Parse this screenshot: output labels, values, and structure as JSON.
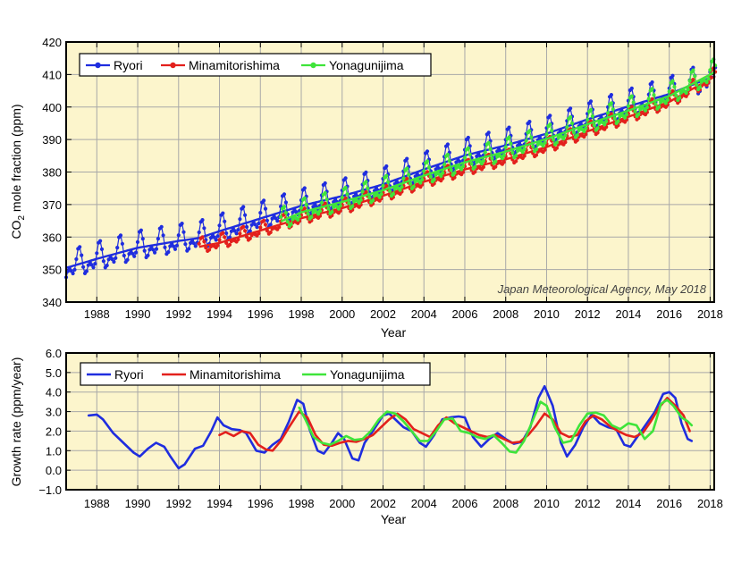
{
  "colors": {
    "panel_background": "#fcf5cc",
    "grid": "#a8a8a8",
    "Ryori": "#1f2ddf",
    "Minamitorishima": "#e3201c",
    "Yonagunijima": "#3fe43a"
  },
  "chart_data": [
    {
      "id": "co2",
      "type": "line",
      "title": "",
      "xlabel": "Year",
      "ylabel_main": "CO",
      "ylabel_sub": "2",
      "ylabel_rest": " mole fraction (ppm)",
      "xlim": [
        1986.5,
        2018.2
      ],
      "ylim": [
        340,
        420
      ],
      "xticks": [
        1988,
        1990,
        1992,
        1994,
        1996,
        1998,
        2000,
        2002,
        2004,
        2006,
        2008,
        2010,
        2012,
        2014,
        2016,
        2018
      ],
      "xtick_labels": [
        "1988",
        "1990",
        "1992",
        "1994",
        "1996",
        "1998",
        "2000",
        "2002",
        "2004",
        "2006",
        "2008",
        "2010",
        "2012",
        "2014",
        "2016",
        "2018"
      ],
      "yticks": [
        340,
        350,
        360,
        370,
        380,
        390,
        400,
        410,
        420
      ],
      "ytick_labels": [
        "340",
        "350",
        "360",
        "370",
        "380",
        "390",
        "400",
        "410",
        "420"
      ],
      "grid": true,
      "legend_position": "top-left",
      "annotation": "Japan Meteorological Agency, May 2018",
      "series": [
        {
          "name": "Ryori",
          "color_key": "Ryori",
          "start": 1986.5,
          "end": 2018.3,
          "amplitude": 5.5,
          "trend": [
            [
              1986.5,
              350.5
            ],
            [
              1988.0,
              353.3
            ],
            [
              1990.0,
              356.7
            ],
            [
              1992.0,
              358.8
            ],
            [
              1993.0,
              359.7
            ],
            [
              1994.0,
              361.8
            ],
            [
              1996.0,
              365.7
            ],
            [
              1998.0,
              369.6
            ],
            [
              2000.0,
              372.6
            ],
            [
              2002.0,
              376.2
            ],
            [
              2004.0,
              380.8
            ],
            [
              2006.0,
              385.1
            ],
            [
              2008.0,
              388.2
            ],
            [
              2010.0,
              391.8
            ],
            [
              2012.0,
              396.2
            ],
            [
              2014.0,
              400.2
            ],
            [
              2016.0,
              404.0
            ],
            [
              2018.0,
              409.0
            ]
          ]
        },
        {
          "name": "Minamitorishima",
          "color_key": "Minamitorishima",
          "start": 1993.0,
          "end": 2018.3,
          "amplitude": 2.9,
          "trend": [
            [
              1993.0,
              357.0
            ],
            [
              1994.0,
              358.2
            ],
            [
              1996.0,
              362.0
            ],
            [
              1998.0,
              365.8
            ],
            [
              2000.0,
              368.9
            ],
            [
              2002.0,
              372.7
            ],
            [
              2004.0,
              377.0
            ],
            [
              2006.0,
              380.8
            ],
            [
              2008.0,
              383.9
            ],
            [
              2010.0,
              387.7
            ],
            [
              2012.0,
              392.5
            ],
            [
              2014.0,
              397.0
            ],
            [
              2016.0,
              401.6
            ],
            [
              2018.0,
              408.6
            ]
          ]
        },
        {
          "name": "Yonagunijima",
          "color_key": "Yonagunijima",
          "start": 1997.0,
          "end": 2018.3,
          "amplitude": 4.3,
          "trend": [
            [
              1997.0,
              364.8
            ],
            [
              1998.0,
              367.6
            ],
            [
              2000.0,
              370.8
            ],
            [
              2002.0,
              374.4
            ],
            [
              2004.0,
              378.9
            ],
            [
              2006.0,
              383.0
            ],
            [
              2008.0,
              386.3
            ],
            [
              2010.0,
              390.2
            ],
            [
              2012.0,
              394.7
            ],
            [
              2014.0,
              398.9
            ],
            [
              2016.0,
              403.4
            ],
            [
              2018.0,
              410.0
            ]
          ]
        }
      ]
    },
    {
      "id": "growth",
      "type": "line",
      "title": "",
      "xlabel": "Year",
      "ylabel": "Growth rate (ppm/year)",
      "xlim": [
        1986.5,
        2018.2
      ],
      "ylim": [
        -1.0,
        6.0
      ],
      "xticks": [
        1988,
        1990,
        1992,
        1994,
        1996,
        1998,
        2000,
        2002,
        2004,
        2006,
        2008,
        2010,
        2012,
        2014,
        2016,
        2018
      ],
      "xtick_labels": [
        "1988",
        "1990",
        "1992",
        "1994",
        "1996",
        "1998",
        "2000",
        "2002",
        "2004",
        "2006",
        "2008",
        "2010",
        "2012",
        "2014",
        "2016",
        "2018"
      ],
      "yticks": [
        -1,
        0,
        1,
        2,
        3,
        4,
        5,
        6
      ],
      "ytick_labels": [
        "−1.0",
        "0.0",
        "1.0",
        "2.0",
        "3.0",
        "4.0",
        "5.0",
        "6.0"
      ],
      "grid": true,
      "legend_position": "top",
      "series": [
        {
          "name": "Ryori",
          "color_key": "Ryori",
          "points": [
            [
              1987.6,
              2.8
            ],
            [
              1988.0,
              2.85
            ],
            [
              1988.3,
              2.6
            ],
            [
              1988.8,
              1.9
            ],
            [
              1989.3,
              1.4
            ],
            [
              1989.8,
              0.9
            ],
            [
              1990.1,
              0.7
            ],
            [
              1990.5,
              1.1
            ],
            [
              1990.9,
              1.4
            ],
            [
              1991.3,
              1.2
            ],
            [
              1991.6,
              0.7
            ],
            [
              1992.0,
              0.1
            ],
            [
              1992.3,
              0.3
            ],
            [
              1992.8,
              1.1
            ],
            [
              1993.2,
              1.25
            ],
            [
              1993.6,
              2.0
            ],
            [
              1993.9,
              2.7
            ],
            [
              1994.2,
              2.3
            ],
            [
              1994.6,
              2.1
            ],
            [
              1995.0,
              2.05
            ],
            [
              1995.3,
              1.9
            ],
            [
              1995.8,
              1.0
            ],
            [
              1996.2,
              0.9
            ],
            [
              1996.6,
              1.3
            ],
            [
              1997.0,
              1.6
            ],
            [
              1997.4,
              2.5
            ],
            [
              1997.8,
              3.6
            ],
            [
              1998.1,
              3.4
            ],
            [
              1998.4,
              2.1
            ],
            [
              1998.8,
              1.0
            ],
            [
              1999.1,
              0.85
            ],
            [
              1999.5,
              1.4
            ],
            [
              1999.8,
              1.9
            ],
            [
              2000.1,
              1.6
            ],
            [
              2000.5,
              0.6
            ],
            [
              2000.8,
              0.5
            ],
            [
              2001.1,
              1.4
            ],
            [
              2001.5,
              2.0
            ],
            [
              2002.0,
              2.8
            ],
            [
              2002.3,
              2.9
            ],
            [
              2002.7,
              2.5
            ],
            [
              2003.0,
              2.2
            ],
            [
              2003.4,
              2.0
            ],
            [
              2003.8,
              1.4
            ],
            [
              2004.1,
              1.2
            ],
            [
              2004.5,
              1.8
            ],
            [
              2004.9,
              2.6
            ],
            [
              2005.3,
              2.7
            ],
            [
              2005.7,
              2.75
            ],
            [
              2006.0,
              2.7
            ],
            [
              2006.4,
              1.7
            ],
            [
              2006.8,
              1.2
            ],
            [
              2007.2,
              1.6
            ],
            [
              2007.6,
              1.9
            ],
            [
              2008.0,
              1.6
            ],
            [
              2008.4,
              1.35
            ],
            [
              2008.8,
              1.45
            ],
            [
              2009.2,
              2.2
            ],
            [
              2009.6,
              3.7
            ],
            [
              2009.9,
              4.3
            ],
            [
              2010.3,
              3.3
            ],
            [
              2010.7,
              1.4
            ],
            [
              2011.0,
              0.7
            ],
            [
              2011.4,
              1.3
            ],
            [
              2011.8,
              2.2
            ],
            [
              2012.2,
              2.85
            ],
            [
              2012.6,
              2.4
            ],
            [
              2013.0,
              2.2
            ],
            [
              2013.4,
              2.1
            ],
            [
              2013.8,
              1.3
            ],
            [
              2014.1,
              1.2
            ],
            [
              2014.5,
              1.8
            ],
            [
              2014.9,
              2.4
            ],
            [
              2015.3,
              3.0
            ],
            [
              2015.7,
              3.9
            ],
            [
              2016.0,
              4.0
            ],
            [
              2016.3,
              3.7
            ],
            [
              2016.6,
              2.4
            ],
            [
              2016.9,
              1.6
            ],
            [
              2017.1,
              1.5
            ]
          ]
        },
        {
          "name": "Minamitorishima",
          "color_key": "Minamitorishima",
          "points": [
            [
              1994.0,
              1.8
            ],
            [
              1994.3,
              1.95
            ],
            [
              1994.7,
              1.75
            ],
            [
              1995.1,
              2.0
            ],
            [
              1995.5,
              1.9
            ],
            [
              1995.9,
              1.3
            ],
            [
              1996.3,
              1.05
            ],
            [
              1996.6,
              1.0
            ],
            [
              1997.0,
              1.5
            ],
            [
              1997.4,
              2.2
            ],
            [
              1997.9,
              3.0
            ],
            [
              1998.3,
              2.7
            ],
            [
              1998.7,
              1.8
            ],
            [
              1999.1,
              1.3
            ],
            [
              1999.5,
              1.25
            ],
            [
              1999.9,
              1.4
            ],
            [
              2000.3,
              1.5
            ],
            [
              2000.7,
              1.45
            ],
            [
              2001.1,
              1.6
            ],
            [
              2001.5,
              1.8
            ],
            [
              2001.9,
              2.2
            ],
            [
              2002.3,
              2.6
            ],
            [
              2002.7,
              2.9
            ],
            [
              2003.1,
              2.6
            ],
            [
              2003.5,
              2.1
            ],
            [
              2003.9,
              1.9
            ],
            [
              2004.3,
              1.7
            ],
            [
              2004.7,
              2.3
            ],
            [
              2005.1,
              2.7
            ],
            [
              2005.5,
              2.4
            ],
            [
              2005.9,
              2.2
            ],
            [
              2006.3,
              2.0
            ],
            [
              2006.7,
              1.8
            ],
            [
              2007.1,
              1.7
            ],
            [
              2007.5,
              1.8
            ],
            [
              2007.9,
              1.6
            ],
            [
              2008.3,
              1.4
            ],
            [
              2008.7,
              1.45
            ],
            [
              2009.1,
              1.8
            ],
            [
              2009.5,
              2.3
            ],
            [
              2009.9,
              2.9
            ],
            [
              2010.3,
              2.6
            ],
            [
              2010.7,
              1.9
            ],
            [
              2011.1,
              1.7
            ],
            [
              2011.5,
              1.8
            ],
            [
              2011.9,
              2.5
            ],
            [
              2012.3,
              2.8
            ],
            [
              2012.7,
              2.6
            ],
            [
              2013.1,
              2.25
            ],
            [
              2013.5,
              2.0
            ],
            [
              2013.9,
              1.8
            ],
            [
              2014.3,
              1.7
            ],
            [
              2014.7,
              1.9
            ],
            [
              2015.1,
              2.5
            ],
            [
              2015.5,
              3.2
            ],
            [
              2015.9,
              3.7
            ],
            [
              2016.3,
              3.3
            ],
            [
              2016.7,
              2.8
            ],
            [
              2017.0,
              2.0
            ]
          ]
        },
        {
          "name": "Yonagunijima",
          "color_key": "Yonagunijima",
          "points": [
            [
              1997.9,
              3.2
            ],
            [
              1998.2,
              2.6
            ],
            [
              1998.6,
              1.7
            ],
            [
              1999.0,
              1.4
            ],
            [
              1999.4,
              1.3
            ],
            [
              1999.8,
              1.5
            ],
            [
              2000.2,
              1.75
            ],
            [
              2000.6,
              1.55
            ],
            [
              2001.0,
              1.6
            ],
            [
              2001.4,
              2.0
            ],
            [
              2001.8,
              2.6
            ],
            [
              2002.2,
              3.0
            ],
            [
              2002.6,
              2.9
            ],
            [
              2003.0,
              2.5
            ],
            [
              2003.4,
              2.0
            ],
            [
              2003.8,
              1.5
            ],
            [
              2004.2,
              1.5
            ],
            [
              2004.6,
              2.0
            ],
            [
              2005.0,
              2.6
            ],
            [
              2005.4,
              2.65
            ],
            [
              2005.8,
              2.0
            ],
            [
              2006.2,
              1.9
            ],
            [
              2006.6,
              1.7
            ],
            [
              2007.0,
              1.6
            ],
            [
              2007.4,
              1.8
            ],
            [
              2007.8,
              1.4
            ],
            [
              2008.2,
              0.95
            ],
            [
              2008.5,
              0.9
            ],
            [
              2008.9,
              1.5
            ],
            [
              2009.3,
              2.5
            ],
            [
              2009.7,
              3.5
            ],
            [
              2010.0,
              3.3
            ],
            [
              2010.4,
              2.2
            ],
            [
              2010.8,
              1.4
            ],
            [
              2011.2,
              1.5
            ],
            [
              2011.6,
              2.3
            ],
            [
              2012.0,
              2.9
            ],
            [
              2012.4,
              2.95
            ],
            [
              2012.8,
              2.8
            ],
            [
              2013.2,
              2.3
            ],
            [
              2013.6,
              2.1
            ],
            [
              2014.0,
              2.4
            ],
            [
              2014.4,
              2.3
            ],
            [
              2014.8,
              1.6
            ],
            [
              2015.2,
              2.0
            ],
            [
              2015.6,
              3.4
            ],
            [
              2015.9,
              3.6
            ],
            [
              2016.2,
              3.3
            ],
            [
              2016.6,
              2.7
            ],
            [
              2016.9,
              2.5
            ],
            [
              2017.1,
              2.3
            ]
          ]
        }
      ]
    }
  ]
}
